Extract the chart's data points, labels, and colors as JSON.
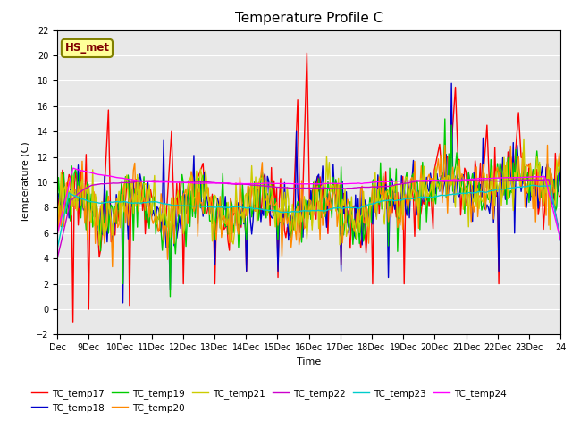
{
  "title": "Temperature Profile C",
  "xlabel": "Time",
  "ylabel": "Temperature (C)",
  "ylim": [
    -2,
    22
  ],
  "yticks": [
    -2,
    0,
    2,
    4,
    6,
    8,
    10,
    12,
    14,
    16,
    18,
    20,
    22
  ],
  "xtick_labels": [
    "Dec",
    "9Dec",
    "10Dec",
    "11Dec",
    "12Dec",
    "13Dec",
    "14Dec",
    "15Dec",
    "16Dec",
    "17Dec",
    "18Dec",
    "19Dec",
    "20Dec",
    "21Dec",
    "22Dec",
    "23Dec",
    "24"
  ],
  "annotation": "HS_met",
  "series_colors": {
    "TC_temp17": "#ff0000",
    "TC_temp18": "#0000cc",
    "TC_temp19": "#00cc00",
    "TC_temp20": "#ff8800",
    "TC_temp21": "#cccc00",
    "TC_temp22": "#cc00cc",
    "TC_temp23": "#00cccc",
    "TC_temp24": "#ff00ff"
  },
  "bg_color": "#e8e8e8",
  "title_fontsize": 11,
  "label_fontsize": 8,
  "tick_fontsize": 7,
  "figsize": [
    6.4,
    4.8
  ],
  "dpi": 100
}
